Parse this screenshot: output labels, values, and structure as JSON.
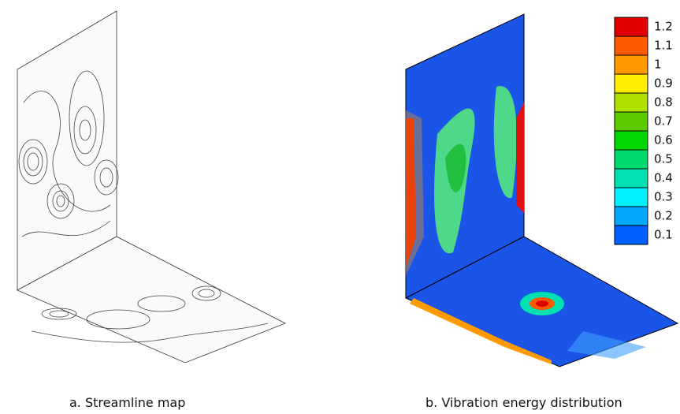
{
  "captions": {
    "left": "a. Streamline map",
    "right": "b. Vibration energy distribution"
  },
  "colorbar": {
    "labels": [
      "1.2",
      "1.1",
      "1",
      "0.9",
      "0.8",
      "0.7",
      "0.6",
      "0.5",
      "0.4",
      "0.3",
      "0.2",
      "0.1"
    ],
    "colors": [
      "#e00000",
      "#ff5a00",
      "#ff9a00",
      "#ffee00",
      "#b0e000",
      "#5ccc00",
      "#00d800",
      "#00d870",
      "#00e0b0",
      "#00f0ff",
      "#00a8ff",
      "#0060ff"
    ]
  }
}
